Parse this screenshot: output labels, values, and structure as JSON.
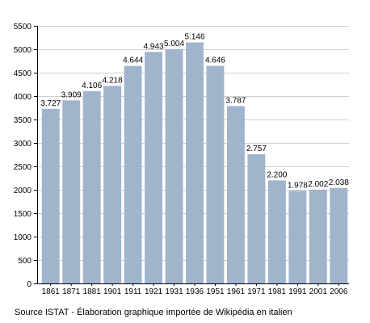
{
  "chart_data": {
    "type": "bar",
    "title": "",
    "xlabel": "",
    "ylabel": "",
    "categories": [
      "1861",
      "1871",
      "1881",
      "1901",
      "1911",
      "1921",
      "1931",
      "1936",
      "1951",
      "1961",
      "1971",
      "1981",
      "1991",
      "2001",
      "2006"
    ],
    "values": [
      3727,
      3909,
      4106,
      4218,
      4644,
      4943,
      5004,
      5146,
      4646,
      3787,
      2757,
      2200,
      1978,
      2002,
      2038
    ],
    "value_labels": [
      "3.727",
      "3.909",
      "4.106",
      "4.218",
      "4.644",
      "4.943",
      "5.004",
      "5.146",
      "4.646",
      "3.787",
      "2.757",
      "2.200",
      "1.978",
      "2.002",
      "2.038"
    ],
    "ylim": [
      0,
      5500
    ],
    "yticks": [
      0,
      500,
      1000,
      1500,
      2000,
      2500,
      3000,
      3500,
      4000,
      4500,
      5000,
      5500
    ],
    "grid": true,
    "legend": "none",
    "bar_color": "#a0b4cc",
    "grid_color": "#cfcfcf"
  },
  "footer": {
    "source": "Source ISTAT - Élaboration graphique importée de Wikipédia en italien"
  }
}
